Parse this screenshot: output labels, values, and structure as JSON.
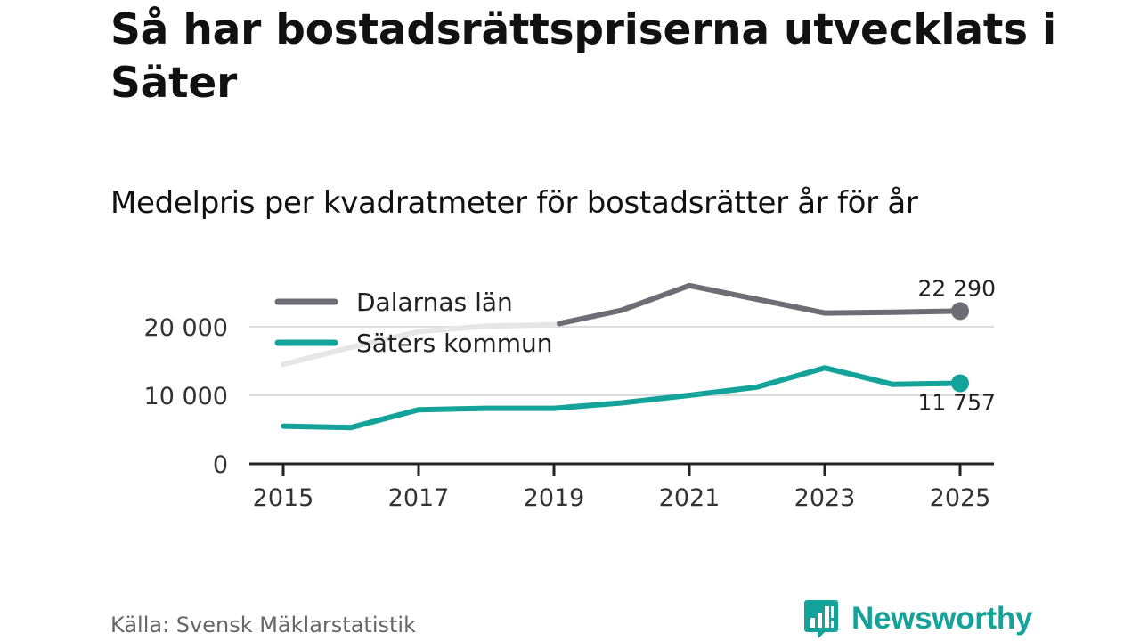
{
  "title": "Så har bostadsrättspriserna utvecklats i Säter",
  "subtitle": "Medelpris per kvadratmeter för bostadsrätter år för år",
  "source": "Källa: Svensk Mäklarstatistik",
  "brand": {
    "name": "Newsworthy",
    "color": "#13a39a",
    "icon": "newsworthy-logo-icon"
  },
  "colors": {
    "lan": "#6e6d75",
    "kommun": "#13a39a",
    "faded": "#e6e6e6",
    "grid": "#dddddd",
    "axis": "#222222"
  },
  "chart_data": {
    "type": "line",
    "title": "Medelpris per kvadratmeter för bostadsrätter år för år",
    "xlabel": "",
    "ylabel": "",
    "x": [
      2015,
      2016,
      2017,
      2018,
      2019,
      2020,
      2021,
      2022,
      2023,
      2024,
      2025
    ],
    "xticks": [
      "2015",
      "2017",
      "2019",
      "2021",
      "2023",
      "2025"
    ],
    "yticks": [
      {
        "value": 0,
        "label": "0"
      },
      {
        "value": 10000,
        "label": "10 000"
      },
      {
        "value": 20000,
        "label": "20 000"
      }
    ],
    "ylim": [
      0,
      26000
    ],
    "xlim": [
      2015,
      2025
    ],
    "grid": true,
    "legend": "top-left",
    "series": [
      {
        "name": "Dalarnas län",
        "color": "#6e6d75",
        "values": [
          14500,
          17000,
          19300,
          20100,
          20300,
          22400,
          26000,
          24000,
          22000,
          22100,
          22290
        ],
        "end_label": "22 290"
      },
      {
        "name": "Säters kommun",
        "color": "#13a39a",
        "values": [
          5500,
          5300,
          7900,
          8100,
          8100,
          8900,
          10000,
          11200,
          14000,
          11600,
          11757
        ],
        "end_label": "11 757"
      }
    ]
  }
}
